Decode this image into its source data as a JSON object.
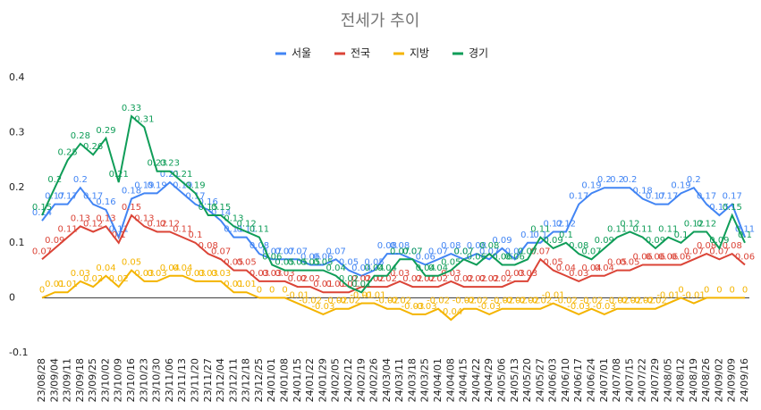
{
  "chart_data": {
    "type": "line",
    "title": "전세가 추이",
    "categories": [
      "23/08/28",
      "23/09/04",
      "23/09/11",
      "23/09/18",
      "23/09/25",
      "23/10/02",
      "23/10/09",
      "23/10/16",
      "23/10/23",
      "23/10/30",
      "23/11/06",
      "23/11/13",
      "23/11/20",
      "23/11/27",
      "23/12/04",
      "23/12/11",
      "23/12/18",
      "23/12/25",
      "24/01/01",
      "24/01/08",
      "24/01/15",
      "24/01/22",
      "24/01/29",
      "24/02/05",
      "24/02/12",
      "24/02/19",
      "24/02/26",
      "24/03/04",
      "24/03/11",
      "24/03/18",
      "24/03/25",
      "24/04/01",
      "24/04/08",
      "24/04/15",
      "24/04/22",
      "24/04/29",
      "24/05/06",
      "24/05/13",
      "24/05/20",
      "24/05/27",
      "24/06/03",
      "24/06/10",
      "24/06/17",
      "24/06/24",
      "24/07/01",
      "24/07/08",
      "24/07/15",
      "24/07/22",
      "24/07/29",
      "24/08/05",
      "24/08/12",
      "24/08/19",
      "24/08/26",
      "24/09/02",
      "24/09/09",
      "24/09/16"
    ],
    "series": [
      {
        "name": "서울",
        "color": "#4285f4",
        "values": [
          0.14,
          0.17,
          0.17,
          0.2,
          0.17,
          0.16,
          0.11,
          0.18,
          0.19,
          0.19,
          0.21,
          0.19,
          0.17,
          0.16,
          0.14,
          0.11,
          0.11,
          0.08,
          0.07,
          0.07,
          0.07,
          0.06,
          0.06,
          0.07,
          0.05,
          0.04,
          0.05,
          0.08,
          0.08,
          0.07,
          0.06,
          0.07,
          0.08,
          0.07,
          0.08,
          0.07,
          0.09,
          0.07,
          0.1,
          0.1,
          0.12,
          0.12,
          0.17,
          0.19,
          0.2,
          0.2,
          0.2,
          0.18,
          0.17,
          0.17,
          0.19,
          0.2,
          0.17,
          0.15,
          0.17,
          0.11
        ]
      },
      {
        "name": "전국",
        "color": "#db4437",
        "values": [
          0.07,
          0.09,
          0.11,
          0.13,
          0.12,
          0.13,
          0.1,
          0.15,
          0.13,
          0.12,
          0.12,
          0.11,
          0.1,
          0.08,
          0.07,
          0.05,
          0.05,
          0.03,
          0.03,
          0.03,
          0.02,
          0.02,
          0.01,
          0.01,
          0.01,
          0.02,
          0.02,
          0.02,
          0.03,
          0.02,
          0.02,
          0.02,
          0.03,
          0.02,
          0.02,
          0.02,
          0.02,
          0.03,
          0.03,
          0.07,
          0.05,
          0.04,
          0.03,
          0.04,
          0.04,
          0.05,
          0.05,
          0.06,
          0.06,
          0.06,
          0.06,
          0.07,
          0.08,
          0.07,
          0.08,
          0.06
        ]
      },
      {
        "name": "지방",
        "color": "#f4b400",
        "values": [
          0,
          0.01,
          0.01,
          0.03,
          0.02,
          0.04,
          0.02,
          0.05,
          0.03,
          0.03,
          0.04,
          0.04,
          0.03,
          0.03,
          0.03,
          0.01,
          0.01,
          0,
          0,
          0,
          -0.01,
          -0.02,
          -0.03,
          -0.02,
          -0.02,
          -0.01,
          -0.01,
          -0.02,
          -0.02,
          -0.03,
          -0.03,
          -0.02,
          -0.04,
          -0.02,
          -0.02,
          -0.03,
          -0.02,
          -0.02,
          -0.02,
          -0.02,
          -0.01,
          -0.02,
          -0.03,
          -0.02,
          -0.03,
          -0.02,
          -0.02,
          -0.02,
          -0.02,
          -0.01,
          0,
          -0.01,
          0,
          0,
          0,
          0
        ]
      },
      {
        "name": "경기",
        "color": "#0f9d58",
        "values": [
          0.15,
          0.2,
          0.25,
          0.28,
          0.26,
          0.29,
          0.21,
          0.33,
          0.31,
          0.23,
          0.23,
          0.21,
          0.19,
          0.15,
          0.15,
          0.13,
          0.12,
          0.11,
          0.06,
          0.05,
          0.05,
          0.05,
          0.05,
          0.04,
          0.02,
          0.01,
          0.04,
          0.04,
          0.07,
          0.07,
          0.04,
          0.04,
          0.05,
          0.07,
          0.06,
          0.08,
          0.06,
          0.06,
          0.07,
          0.11,
          0.09,
          0.1,
          0.08,
          0.07,
          0.09,
          0.11,
          0.12,
          0.11,
          0.09,
          0.11,
          0.1,
          0.12,
          0.12,
          0.09,
          0.15,
          0.1
        ]
      }
    ],
    "ylim": [
      -0.1,
      0.4
    ],
    "yticks": [
      -0.1,
      0,
      0.1,
      0.2,
      0.3,
      0.4
    ],
    "grid": false,
    "legend": "top"
  }
}
